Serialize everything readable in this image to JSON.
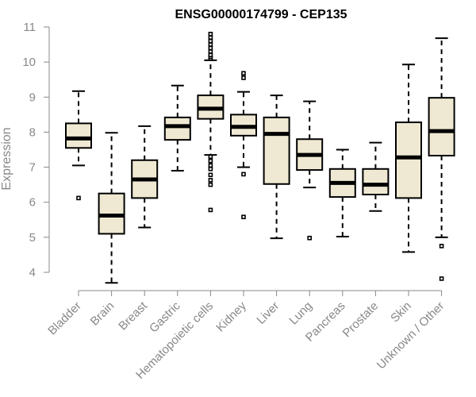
{
  "chart_data": {
    "type": "boxplot",
    "title": "ENSG00000174799 - CEP135",
    "xlabel": "",
    "ylabel": "Expression",
    "ylim": [
      3.6,
      11.0
    ],
    "yticks": [
      4,
      5,
      6,
      7,
      8,
      9,
      10,
      11
    ],
    "grid": false,
    "categories": [
      "Bladder",
      "Brain",
      "Breast",
      "Gastric",
      "Hematopoietic cells",
      "Kidney",
      "Liver",
      "Lung",
      "Pancreas",
      "Prostate",
      "Skin",
      "Unknown / Other"
    ],
    "boxes": [
      {
        "whisker_low": 7.05,
        "q1": 7.55,
        "median": 7.82,
        "q3": 8.25,
        "whisker_high": 9.17,
        "outliers": [
          6.12
        ]
      },
      {
        "whisker_low": 3.7,
        "q1": 5.1,
        "median": 5.62,
        "q3": 6.25,
        "whisker_high": 7.98,
        "outliers": []
      },
      {
        "whisker_low": 5.28,
        "q1": 6.12,
        "median": 6.65,
        "q3": 7.2,
        "whisker_high": 8.17,
        "outliers": []
      },
      {
        "whisker_low": 6.9,
        "q1": 7.78,
        "median": 8.17,
        "q3": 8.42,
        "whisker_high": 9.33,
        "outliers": []
      },
      {
        "whisker_low": 7.35,
        "q1": 8.38,
        "median": 8.67,
        "q3": 9.05,
        "whisker_high": 10.05,
        "outliers": [
          5.78,
          6.5,
          6.63,
          6.78,
          6.95,
          7.05,
          7.18,
          7.3,
          10.1,
          10.15,
          10.2,
          10.3,
          10.4,
          10.5,
          10.6,
          10.7,
          10.8
        ]
      },
      {
        "whisker_low": 7.0,
        "q1": 7.9,
        "median": 8.15,
        "q3": 8.5,
        "whisker_high": 9.15,
        "outliers": [
          5.58,
          6.8,
          9.55,
          9.68
        ]
      },
      {
        "whisker_low": 4.97,
        "q1": 6.52,
        "median": 7.95,
        "q3": 8.42,
        "whisker_high": 9.05,
        "outliers": []
      },
      {
        "whisker_low": 6.42,
        "q1": 6.92,
        "median": 7.35,
        "q3": 7.8,
        "whisker_high": 8.88,
        "outliers": [
          4.98
        ]
      },
      {
        "whisker_low": 5.02,
        "q1": 6.15,
        "median": 6.55,
        "q3": 6.95,
        "whisker_high": 7.5,
        "outliers": []
      },
      {
        "whisker_low": 5.75,
        "q1": 6.22,
        "median": 6.5,
        "q3": 6.95,
        "whisker_high": 7.7,
        "outliers": []
      },
      {
        "whisker_low": 4.58,
        "q1": 6.12,
        "median": 7.28,
        "q3": 8.28,
        "whisker_high": 9.93,
        "outliers": []
      },
      {
        "whisker_low": 5.0,
        "q1": 7.33,
        "median": 8.03,
        "q3": 8.98,
        "whisker_high": 10.68,
        "outliers": [
          3.82,
          4.75
        ]
      }
    ]
  }
}
